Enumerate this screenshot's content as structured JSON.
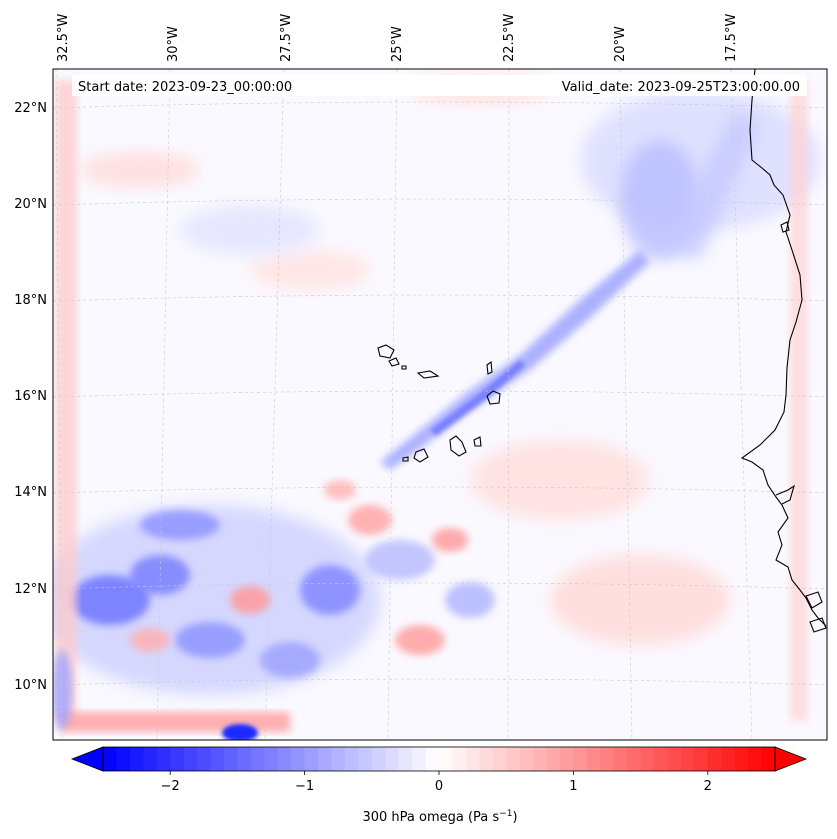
{
  "map": {
    "start_label": "Start date: 2023-09-23_00:00:00",
    "valid_label": "Valid_date: 2023-09-25T23:00:00.00",
    "lon_labels": [
      "32.5°W",
      "30°W",
      "27.5°W",
      "25°W",
      "22.5°W",
      "20°W",
      "17.5°W"
    ],
    "lat_labels": [
      "22°N",
      "20°N",
      "18°N",
      "16°N",
      "14°N",
      "12°N",
      "10°N"
    ],
    "coastline_color": "#000000",
    "gridline_style": "dashed light grey"
  },
  "colorbar": {
    "label": "300 hPa omega (Pa s",
    "label_sup": "−1",
    "label_close": ")",
    "tick_labels": [
      "−2",
      "−1",
      "0",
      "1",
      "2"
    ],
    "tick_values": [
      -2,
      -1,
      0,
      1,
      2
    ],
    "range": [
      -2.5,
      2.5
    ],
    "colormap": "bwr",
    "color_low": "#0000ff",
    "color_mid": "#ffffff",
    "color_high": "#ff0000",
    "extend": "both"
  }
}
